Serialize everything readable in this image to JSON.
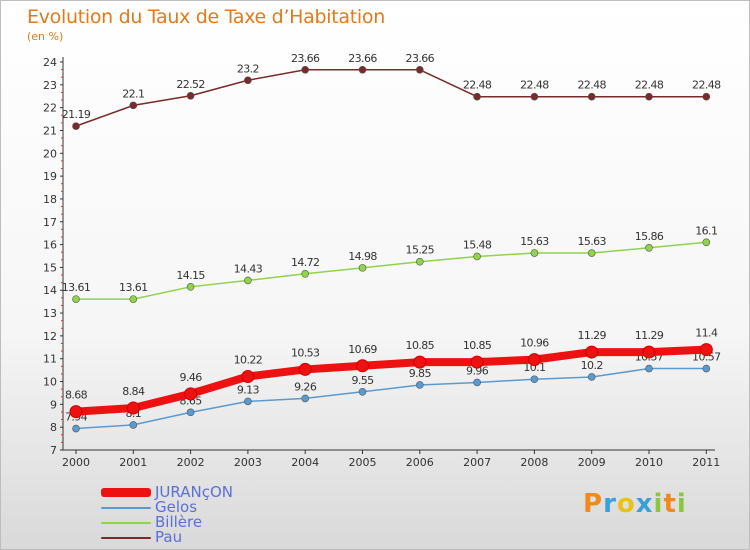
{
  "header": {
    "title": "Evolution du Taux de Taxe d’Habitation",
    "subtitle": "(en %)"
  },
  "logo": {
    "text": "Proxiti",
    "letters": [
      {
        "ch": "P",
        "color": "#f08a1c"
      },
      {
        "ch": "r",
        "color": "#3aa0d8"
      },
      {
        "ch": "o",
        "color": "#e8c21a"
      },
      {
        "ch": "x",
        "color": "#3aa0d8"
      },
      {
        "ch": "i",
        "color": "#8cc63f"
      },
      {
        "ch": "t",
        "color": "#f08a1c"
      },
      {
        "ch": "i",
        "color": "#8cc63f"
      }
    ]
  },
  "chart_data": {
    "type": "line",
    "title": "Evolution du Taux de Taxe d’Habitation",
    "ylabel": "(en %)",
    "xlabel": "",
    "x": [
      "2000",
      "2001",
      "2002",
      "2003",
      "2004",
      "2005",
      "2006",
      "2007",
      "2008",
      "2009",
      "2010",
      "2011"
    ],
    "ylim": [
      7,
      24
    ],
    "yticks": [
      7,
      8,
      9,
      10,
      11,
      12,
      13,
      14,
      15,
      16,
      17,
      18,
      19,
      20,
      21,
      22,
      23,
      24
    ],
    "grid": false,
    "legend_position": "bottom-left",
    "series": [
      {
        "name": "Pau",
        "color": "#7a2a2a",
        "values": [
          21.19,
          22.1,
          22.52,
          23.2,
          23.66,
          23.66,
          23.66,
          22.48,
          22.48,
          22.48,
          22.48,
          22.48
        ],
        "labels": [
          "21.19",
          "22.1",
          "22.52",
          "23.2",
          "23.66",
          "23.66",
          "23.66",
          "22.48",
          "22.48",
          "22.48",
          "22.48",
          "22.48"
        ]
      },
      {
        "name": "Billère",
        "color": "#8fd44a",
        "values": [
          13.61,
          13.61,
          14.15,
          14.43,
          14.72,
          14.98,
          15.25,
          15.48,
          15.63,
          15.63,
          15.86,
          16.1
        ],
        "labels": [
          "13.61",
          "13.61",
          "14.15",
          "14.43",
          "14.72",
          "14.98",
          "15.25",
          "15.48",
          "15.63",
          "15.63",
          "15.86",
          "16.1"
        ]
      },
      {
        "name": "Gelos",
        "color": "#5a9ad0",
        "values": [
          7.94,
          8.1,
          8.65,
          9.13,
          9.26,
          9.55,
          9.85,
          9.96,
          10.1,
          10.2,
          10.57,
          10.57
        ],
        "labels": [
          "7.94",
          "8.1",
          "8.65",
          "9.13",
          "9.26",
          "9.55",
          "9.85",
          "9.96",
          "10.1",
          "10.2",
          "10.57",
          "10.57"
        ]
      },
      {
        "name": "JURANçON",
        "color": "#ee1111",
        "values": [
          8.68,
          8.84,
          9.46,
          10.22,
          10.53,
          10.69,
          10.85,
          10.85,
          10.96,
          11.29,
          11.29,
          11.4
        ],
        "labels": [
          "8.68",
          "8.84",
          "9.46",
          "10.22",
          "10.53",
          "10.69",
          "10.85",
          "10.85",
          "10.96",
          "11.29",
          "11.29",
          "11.4"
        ]
      }
    ],
    "legend": [
      {
        "name": "JURANçON",
        "color": "#ee1111",
        "weight": "thick"
      },
      {
        "name": "Gelos",
        "color": "#5a9ad0",
        "weight": "thin"
      },
      {
        "name": "Billère",
        "color": "#8fd44a",
        "weight": "thin"
      },
      {
        "name": "Pau",
        "color": "#7a2a2a",
        "weight": "thin"
      }
    ]
  }
}
